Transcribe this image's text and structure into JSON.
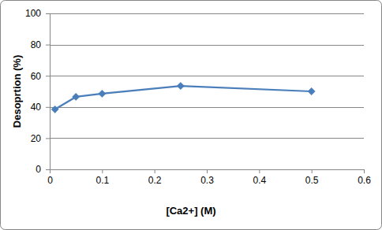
{
  "chart_data": {
    "type": "line",
    "x_label": "[Ca2+] (M)",
    "y_label": "Desoprtion (%)",
    "x": [
      0.01,
      0.05,
      0.1,
      0.25,
      0.5
    ],
    "values": [
      38.5,
      46.5,
      48.5,
      53.5,
      50
    ],
    "color": "#4a7ebb",
    "marker": "diamond",
    "xlim": [
      0,
      0.6
    ],
    "xticks": [
      0,
      0.1,
      0.2,
      0.3,
      0.4,
      0.5,
      0.6
    ],
    "ylim": [
      0,
      100
    ],
    "yticks": [
      0,
      20,
      40,
      60,
      80,
      100
    ],
    "grid": true
  }
}
